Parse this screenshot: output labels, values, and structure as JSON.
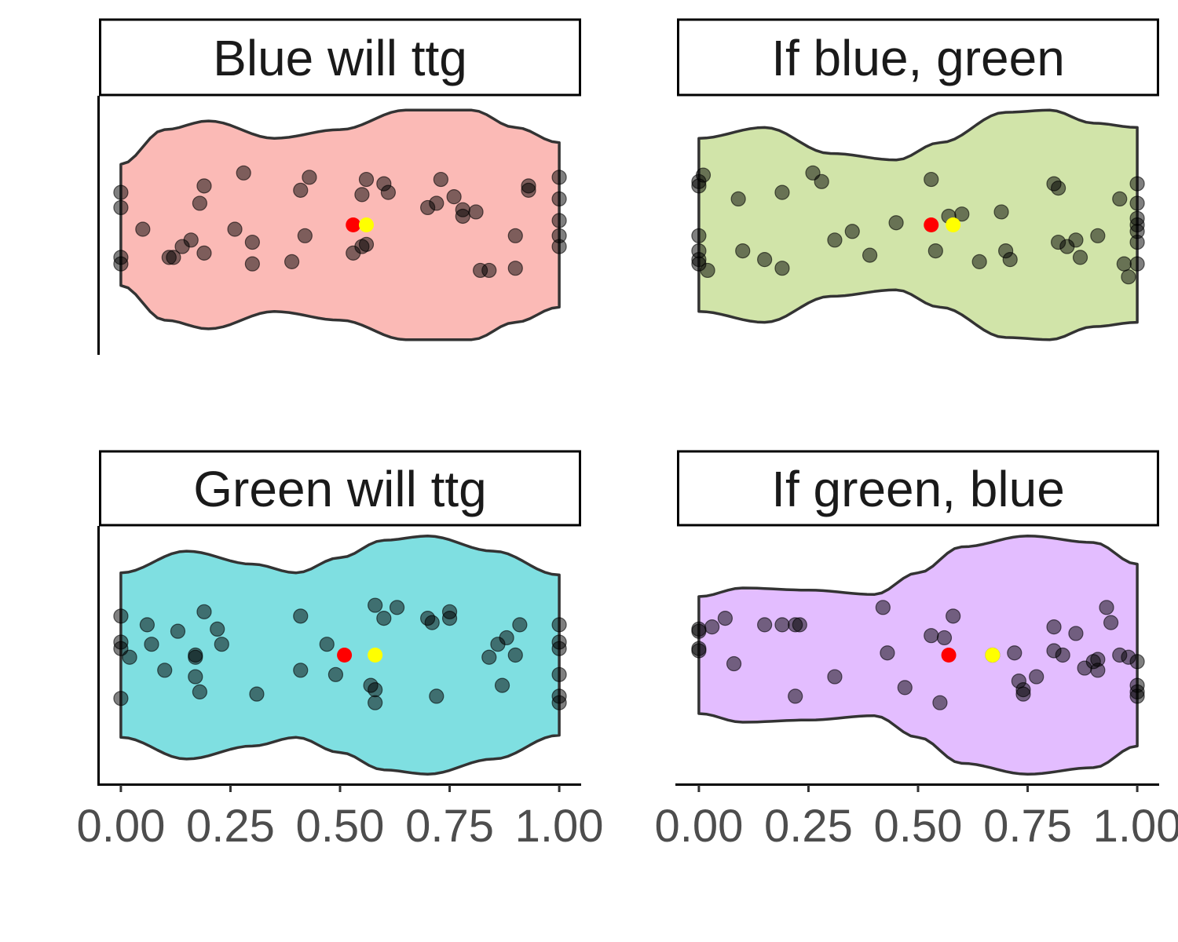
{
  "chart_data": {
    "type": "scatter",
    "x_axis": {
      "range": [
        -0.05,
        1.05
      ],
      "ticks": [
        0,
        0.25,
        0.5,
        0.75,
        1
      ],
      "tick_labels": [
        "0.00",
        "0.25",
        "0.50",
        "0.75",
        "1.00"
      ]
    },
    "grid": false,
    "colors": {
      "mean_marker": "#ff0000",
      "median_marker": "#ffff00",
      "points": "#000000"
    },
    "panels": [
      {
        "title": "Blue will ttg",
        "fill": "#f8766d",
        "violin_halfwidth": [
          [
            0.0,
            0.28
          ],
          [
            0.1,
            0.44
          ],
          [
            0.2,
            0.48
          ],
          [
            0.35,
            0.4
          ],
          [
            0.5,
            0.44
          ],
          [
            0.65,
            0.53
          ],
          [
            0.8,
            0.53
          ],
          [
            0.9,
            0.45
          ],
          [
            1.0,
            0.38
          ]
        ],
        "mean": 0.53,
        "median": 0.56,
        "points": [
          [
            0,
            0.15
          ],
          [
            0,
            0.08
          ],
          [
            0,
            -0.15
          ],
          [
            0,
            -0.18
          ],
          [
            0.05,
            -0.02
          ],
          [
            0.11,
            -0.15
          ],
          [
            0.12,
            -0.15
          ],
          [
            0.14,
            -0.1
          ],
          [
            0.16,
            -0.07
          ],
          [
            0.18,
            0.1
          ],
          [
            0.19,
            0.18
          ],
          [
            0.19,
            -0.13
          ],
          [
            0.26,
            -0.02
          ],
          [
            0.28,
            0.24
          ],
          [
            0.3,
            -0.08
          ],
          [
            0.3,
            -0.18
          ],
          [
            0.39,
            -0.17
          ],
          [
            0.41,
            0.16
          ],
          [
            0.42,
            -0.05
          ],
          [
            0.43,
            0.22
          ],
          [
            0.53,
            -0.13
          ],
          [
            0.55,
            -0.1
          ],
          [
            0.55,
            0.14
          ],
          [
            0.56,
            -0.09
          ],
          [
            0.56,
            0.21
          ],
          [
            0.6,
            0.19
          ],
          [
            0.61,
            0.15
          ],
          [
            0.7,
            0.08
          ],
          [
            0.72,
            0.1
          ],
          [
            0.73,
            0.21
          ],
          [
            0.76,
            0.13
          ],
          [
            0.78,
            0.07
          ],
          [
            0.78,
            0.04
          ],
          [
            0.81,
            0.06
          ],
          [
            0.82,
            -0.21
          ],
          [
            0.84,
            -0.21
          ],
          [
            0.9,
            -0.05
          ],
          [
            0.9,
            -0.2
          ],
          [
            0.93,
            0.18
          ],
          [
            0.93,
            0.16
          ],
          [
            1,
            0.22
          ],
          [
            1,
            0.12
          ],
          [
            1,
            0.02
          ],
          [
            1,
            -0.05
          ],
          [
            1,
            -0.1
          ]
        ]
      },
      {
        "title": "If blue, green",
        "fill": "#a3c953",
        "violin_halfwidth": [
          [
            0.0,
            0.4
          ],
          [
            0.15,
            0.45
          ],
          [
            0.3,
            0.33
          ],
          [
            0.45,
            0.3
          ],
          [
            0.55,
            0.38
          ],
          [
            0.7,
            0.52
          ],
          [
            0.8,
            0.53
          ],
          [
            0.9,
            0.47
          ],
          [
            1.0,
            0.45
          ]
        ],
        "mean": 0.53,
        "median": 0.58,
        "points": [
          [
            0,
            0.2
          ],
          [
            0.01,
            0.23
          ],
          [
            0,
            0.18
          ],
          [
            0,
            -0.05
          ],
          [
            0,
            -0.12
          ],
          [
            0,
            -0.16
          ],
          [
            0,
            -0.18
          ],
          [
            0.02,
            -0.21
          ],
          [
            0.09,
            0.12
          ],
          [
            0.1,
            -0.12
          ],
          [
            0.15,
            -0.16
          ],
          [
            0.19,
            0.15
          ],
          [
            0.19,
            -0.2
          ],
          [
            0.26,
            0.24
          ],
          [
            0.28,
            0.2
          ],
          [
            0.31,
            -0.07
          ],
          [
            0.35,
            -0.03
          ],
          [
            0.39,
            -0.14
          ],
          [
            0.45,
            0.01
          ],
          [
            0.53,
            0.21
          ],
          [
            0.54,
            -0.12
          ],
          [
            0.57,
            0.04
          ],
          [
            0.6,
            0.05
          ],
          [
            0.69,
            0.06
          ],
          [
            0.64,
            -0.17
          ],
          [
            0.7,
            -0.12
          ],
          [
            0.71,
            -0.16
          ],
          [
            0.81,
            0.19
          ],
          [
            0.82,
            0.17
          ],
          [
            0.82,
            -0.08
          ],
          [
            0.84,
            -0.1
          ],
          [
            0.86,
            -0.07
          ],
          [
            0.87,
            -0.15
          ],
          [
            0.91,
            -0.05
          ],
          [
            0.96,
            0.12
          ],
          [
            0.97,
            -0.18
          ],
          [
            0.98,
            -0.24
          ],
          [
            1,
            0.19
          ],
          [
            1,
            0.1
          ],
          [
            1,
            0.03
          ],
          [
            1,
            -0.03
          ],
          [
            1,
            -0.08
          ],
          [
            1,
            -0.18
          ],
          [
            1,
            0.0
          ]
        ]
      },
      {
        "title": "Green will ttg",
        "fill": "#00bfc4",
        "violin_halfwidth": [
          [
            0.0,
            0.38
          ],
          [
            0.15,
            0.48
          ],
          [
            0.3,
            0.42
          ],
          [
            0.4,
            0.38
          ],
          [
            0.5,
            0.45
          ],
          [
            0.6,
            0.53
          ],
          [
            0.7,
            0.55
          ],
          [
            0.85,
            0.48
          ],
          [
            1.0,
            0.37
          ]
        ],
        "mean": 0.51,
        "median": 0.58,
        "points": [
          [
            0,
            0.18
          ],
          [
            0,
            0.06
          ],
          [
            0,
            0.03
          ],
          [
            0,
            -0.2
          ],
          [
            0.02,
            -0.01
          ],
          [
            0.06,
            0.14
          ],
          [
            0.07,
            0.05
          ],
          [
            0.1,
            -0.07
          ],
          [
            0.13,
            0.11
          ],
          [
            0.17,
            0.0
          ],
          [
            0.17,
            -0.01
          ],
          [
            0.17,
            -0.1
          ],
          [
            0.18,
            -0.17
          ],
          [
            0.19,
            0.2
          ],
          [
            0.22,
            0.12
          ],
          [
            0.23,
            0.05
          ],
          [
            0.31,
            -0.18
          ],
          [
            0.41,
            0.18
          ],
          [
            0.41,
            -0.07
          ],
          [
            0.47,
            0.05
          ],
          [
            0.49,
            -0.09
          ],
          [
            0.57,
            -0.14
          ],
          [
            0.58,
            -0.16
          ],
          [
            0.58,
            -0.22
          ],
          [
            0.58,
            0.23
          ],
          [
            0.6,
            0.17
          ],
          [
            0.63,
            0.22
          ],
          [
            0.7,
            0.17
          ],
          [
            0.71,
            0.15
          ],
          [
            0.72,
            -0.19
          ],
          [
            0.75,
            0.2
          ],
          [
            0.75,
            0.17
          ],
          [
            0.84,
            -0.01
          ],
          [
            0.86,
            0.05
          ],
          [
            0.87,
            -0.14
          ],
          [
            0.88,
            0.08
          ],
          [
            0.9,
            0.0
          ],
          [
            0.91,
            0.14
          ],
          [
            1,
            0.14
          ],
          [
            1,
            0.06
          ],
          [
            1,
            0.03
          ],
          [
            1,
            -0.09
          ],
          [
            1,
            -0.19
          ],
          [
            1,
            -0.22
          ]
        ]
      },
      {
        "title": "If green, blue",
        "fill": "#c77cff",
        "violin_halfwidth": [
          [
            0.0,
            0.27
          ],
          [
            0.1,
            0.31
          ],
          [
            0.25,
            0.3
          ],
          [
            0.4,
            0.28
          ],
          [
            0.5,
            0.38
          ],
          [
            0.6,
            0.5
          ],
          [
            0.75,
            0.55
          ],
          [
            0.9,
            0.52
          ],
          [
            1.0,
            0.42
          ]
        ],
        "mean": 0.57,
        "median": 0.67,
        "points": [
          [
            0,
            0.12
          ],
          [
            0,
            0.11
          ],
          [
            0,
            0.03
          ],
          [
            0,
            0.02
          ],
          [
            0.03,
            0.13
          ],
          [
            0.06,
            0.17
          ],
          [
            0.08,
            -0.04
          ],
          [
            0.15,
            0.14
          ],
          [
            0.19,
            0.14
          ],
          [
            0.22,
            0.14
          ],
          [
            0.23,
            0.14
          ],
          [
            0.22,
            -0.19
          ],
          [
            0.31,
            -0.1
          ],
          [
            0.42,
            0.22
          ],
          [
            0.43,
            0.01
          ],
          [
            0.47,
            -0.15
          ],
          [
            0.53,
            0.09
          ],
          [
            0.55,
            -0.22
          ],
          [
            0.56,
            0.08
          ],
          [
            0.58,
            0.18
          ],
          [
            0.67,
            0.0
          ],
          [
            0.72,
            0.01
          ],
          [
            0.73,
            -0.12
          ],
          [
            0.74,
            -0.16
          ],
          [
            0.74,
            -0.18
          ],
          [
            0.77,
            -0.1
          ],
          [
            0.81,
            0.13
          ],
          [
            0.81,
            0.02
          ],
          [
            0.83,
            0.0
          ],
          [
            0.86,
            0.1
          ],
          [
            0.88,
            -0.06
          ],
          [
            0.9,
            -0.03
          ],
          [
            0.91,
            -0.07
          ],
          [
            0.91,
            -0.02
          ],
          [
            0.93,
            0.22
          ],
          [
            0.94,
            0.15
          ],
          [
            0.96,
            0.0
          ],
          [
            0.98,
            -0.01
          ],
          [
            1,
            -0.03
          ],
          [
            1,
            -0.14
          ],
          [
            1,
            -0.17
          ],
          [
            1,
            -0.19
          ]
        ]
      }
    ]
  }
}
